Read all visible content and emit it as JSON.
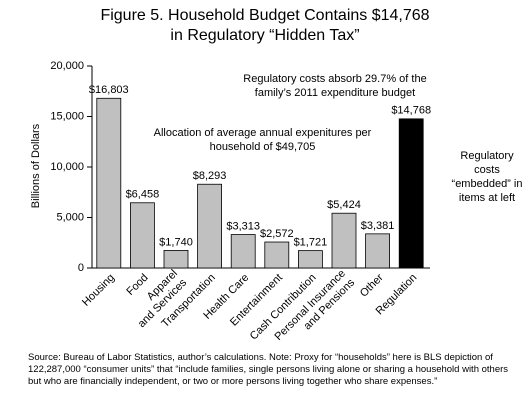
{
  "chart_data": {
    "type": "bar",
    "title": "Figure 5. Household Budget Contains $14,768 in Regulatory “Hidden Tax”",
    "y_label": "Billions of Dollars",
    "categories": [
      "Housing",
      "Food",
      "Apparel and Services",
      "Transportation",
      "Health Care",
      "Entertainment",
      "Cash Contribution",
      "Personal Insurance and Pensions",
      "Other",
      "Regulation"
    ],
    "values": [
      16803,
      6458,
      1740,
      8293,
      3313,
      2572,
      1721,
      5424,
      3381,
      14768
    ],
    "value_labels": [
      "$16,803",
      "$6,458",
      "$1,740",
      "$8,293",
      "$3,313",
      "$2,572",
      "$1,721",
      "$5,424",
      "$3,381",
      "$14,768"
    ],
    "colors": [
      "#c0c0c0",
      "#c0c0c0",
      "#c0c0c0",
      "#c0c0c0",
      "#c0c0c0",
      "#c0c0c0",
      "#c0c0c0",
      "#c0c0c0",
      "#c0c0c0",
      "#000000"
    ],
    "ylim": [
      0,
      20000
    ],
    "yticks": [
      0,
      {
        "value": 5000,
        "label": "5,000"
      },
      {
        "value": 10000,
        "label": "10,000"
      },
      {
        "value": 15000,
        "label": "15,000"
      },
      {
        "value": 20000,
        "label": "20,000"
      }
    ],
    "annotations": [
      "Regulatory costs absorb 29.7% of the family’s 2011 expenditure budget",
      "Allocation of average annual expenitures per household of $49,705",
      "Regulatory costs “embedded” in items at left"
    ],
    "source": "Source: Bureau of Labor Statistics, author’s calculations. Note: Proxy for “households” here is BLS depiction of 122,287,000 “consumer units” that “include families, single persons living alone or sharing a household with others but who are financially independent, or two or more persons living together who share expenses.”"
  }
}
